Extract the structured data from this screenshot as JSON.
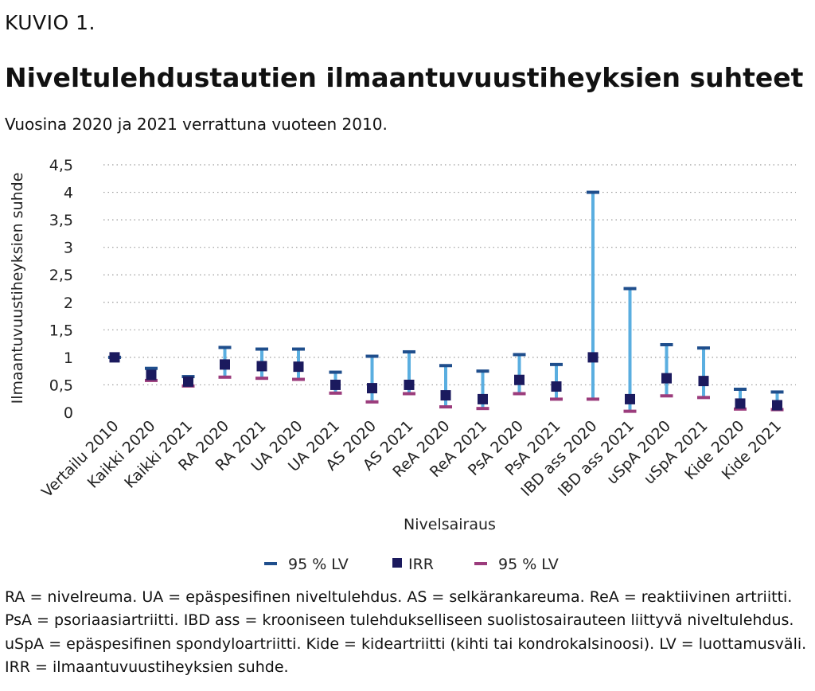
{
  "figure_label": "KUVIO 1.",
  "title": "Niveltulehdustautien ilmaantuvuustiheyksien suhteet",
  "subtitle": "Vuosina 2020 ja 2021 verrattuna vuoteen 2010.",
  "footnote": "RA = nivelreuma. UA = epäspesifinen niveltulehdus. AS = selkärankareuma. ReA = reaktiivinen artriitti. PsA = psoriaasiartriitti. IBD ass = krooniseen tulehdukselliseen suolistosairauteen liittyvä niveltulehdus. uSpA = epäspesifinen spondyloartriitti. Kide = kideartriitti (kihti tai kondrokalsinoosi). LV = luottamusväli. IRR = ilmaantuvuustiheyksien suhde.",
  "colors": {
    "upper": "#1f4e8c",
    "irr": "#1b1a5e",
    "lower": "#9b3c7c",
    "bar": "#5aaee0",
    "grid": "#9a9a9a"
  },
  "chart_data": {
    "type": "scatter",
    "xlabel": "Nivelsairaus",
    "ylabel": "Ilmaantuvuustiheyksien suhde",
    "ylim": [
      0,
      4.5
    ],
    "yticks": [
      "0",
      "0,5",
      "1",
      "1,5",
      "2",
      "2,5",
      "3",
      "3,5",
      "4",
      "4,5"
    ],
    "grid": true,
    "legend_position": "bottom",
    "groups": [
      [
        "Vertailu 2010"
      ],
      [
        "Kaikki 2020",
        "Kaikki 2021"
      ],
      [
        "RA 2020",
        "RA 2021"
      ],
      [
        "UA 2020",
        "UA 2021"
      ],
      [
        "AS 2020",
        "AS 2021"
      ],
      [
        "ReA 2020",
        "ReA 2021"
      ],
      [
        "PsA 2020",
        "PsA 2021"
      ],
      [
        "IBD ass 2020",
        "IBD ass 2021"
      ],
      [
        "uSpA 2020",
        "uSpA 2021"
      ],
      [
        "Kide 2020",
        "Kide 2021"
      ]
    ],
    "categories": [
      "Vertailu 2010",
      "Kaikki 2020",
      "Kaikki 2021",
      "RA 2020",
      "RA 2021",
      "UA 2020",
      "UA 2021",
      "AS 2020",
      "AS 2021",
      "ReA 2020",
      "ReA 2021",
      "PsA 2020",
      "PsA 2021",
      "IBD ass 2020",
      "IBD ass 2021",
      "uSpA 2020",
      "uSpA 2021",
      "Kide 2020",
      "Kide 2021"
    ],
    "series": [
      {
        "name": "95 % LV",
        "role": "upper",
        "values": [
          1.0,
          0.8,
          0.65,
          1.18,
          1.15,
          1.15,
          0.73,
          1.02,
          1.1,
          0.85,
          0.75,
          1.05,
          0.87,
          4.0,
          2.25,
          1.23,
          1.17,
          0.42,
          0.37
        ]
      },
      {
        "name": "IRR",
        "role": "irr",
        "values": [
          1.0,
          0.68,
          0.56,
          0.87,
          0.84,
          0.83,
          0.5,
          0.44,
          0.5,
          0.31,
          0.24,
          0.59,
          0.47,
          1.0,
          0.24,
          0.62,
          0.57,
          0.16,
          0.13
        ]
      },
      {
        "name": "95 % LV",
        "role": "lower",
        "values": [
          1.0,
          0.58,
          0.48,
          0.64,
          0.62,
          0.6,
          0.35,
          0.19,
          0.34,
          0.1,
          0.07,
          0.34,
          0.24,
          0.24,
          0.02,
          0.3,
          0.27,
          0.06,
          0.05
        ]
      }
    ]
  }
}
